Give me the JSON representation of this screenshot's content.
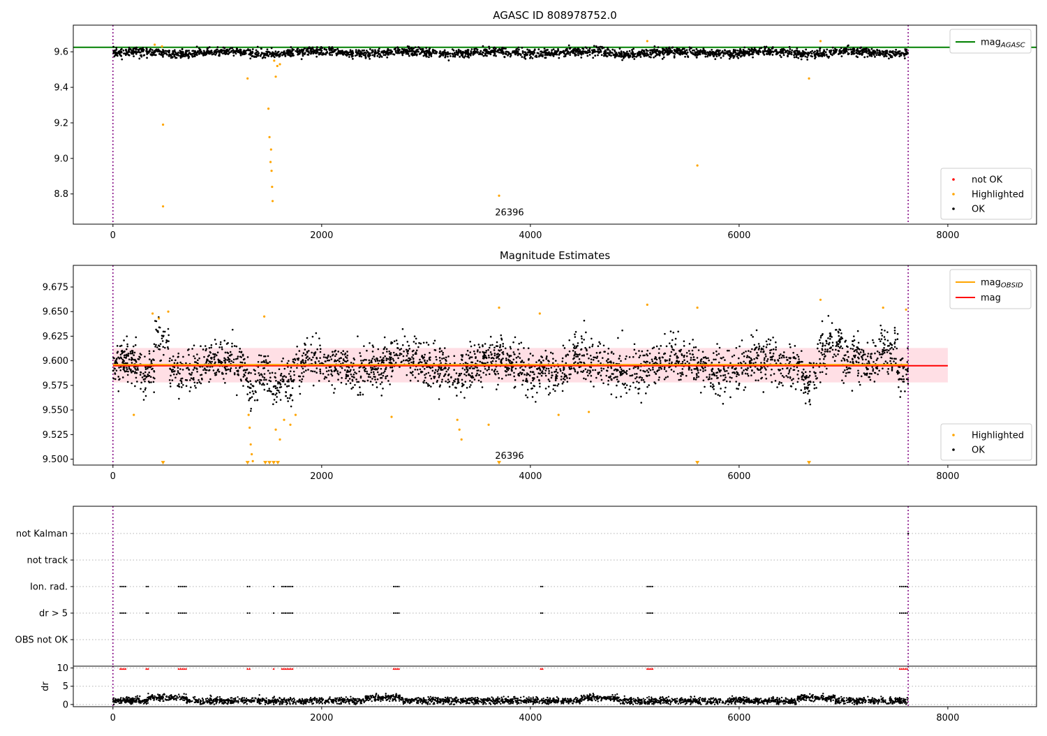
{
  "figure": {
    "page_background": "#ffffff"
  },
  "colors": {
    "ok": "#000000",
    "highlighted": "#ffa500",
    "not_ok": "#ff0000",
    "agasc_line": "#008000",
    "obsid_line": "#ffa500",
    "mag_line": "#ff0000",
    "band": "#ffc0cb",
    "obs_boundary": "#800080",
    "dr_flag": "#ff0000"
  },
  "chart_data": [
    {
      "id": "agasc",
      "type": "scatter",
      "title": "AGASC ID 808978752.0",
      "xlim": [
        -380,
        8850
      ],
      "ylim": [
        8.63,
        9.75
      ],
      "xticks": [
        0,
        2000,
        4000,
        6000,
        8000
      ],
      "xtick_labels": [
        "0",
        "2000",
        "4000",
        "6000",
        "8000"
      ],
      "yticks": [
        8.8,
        9.0,
        9.2,
        9.4,
        9.6
      ],
      "ytick_labels": [
        "8.8",
        "9.0",
        "9.2",
        "9.4",
        "9.6"
      ],
      "hlines": [
        {
          "name": "mag_AGASC",
          "y": 9.625,
          "x_range": [
            -380,
            8850
          ],
          "color": "#008000"
        }
      ],
      "vlines": [
        0,
        7620
      ],
      "annotation": {
        "text": "26396",
        "x": 3800,
        "y": 8.66
      },
      "legend_lines": {
        "position": "top-right",
        "entries": [
          {
            "label": "mag",
            "sub": "AGASC",
            "color": "#008000"
          }
        ]
      },
      "legend_markers": {
        "position": "bottom-right",
        "entries": [
          {
            "label": "not OK",
            "color": "#ff0000"
          },
          {
            "label": "Highlighted",
            "color": "#ffa500"
          },
          {
            "label": "OK",
            "color": "#000000"
          }
        ]
      },
      "series": [
        {
          "name": "OK",
          "color": "#000000",
          "model": {
            "x_range": [
              0,
              7620
            ],
            "base": 9.595,
            "noise": 0.012,
            "count": 2600
          }
        },
        {
          "name": "Highlighted",
          "color": "#ffa500",
          "points": [
            [
              480,
              9.19
            ],
            [
              480,
              8.73
            ],
            [
              1290,
              9.45
            ],
            [
              1490,
              9.28
            ],
            [
              1500,
              9.12
            ],
            [
              1510,
              8.98
            ],
            [
              1515,
              9.05
            ],
            [
              1520,
              8.93
            ],
            [
              1525,
              8.84
            ],
            [
              1530,
              8.76
            ],
            [
              1545,
              9.55
            ],
            [
              1560,
              9.46
            ],
            [
              1575,
              9.52
            ],
            [
              1600,
              9.53
            ],
            [
              3700,
              8.79
            ],
            [
              5600,
              8.96
            ],
            [
              6670,
              9.45
            ],
            [
              400,
              9.64
            ],
            [
              470,
              9.63
            ],
            [
              5120,
              9.66
            ],
            [
              6780,
              9.66
            ]
          ]
        }
      ]
    },
    {
      "id": "magnitude",
      "type": "scatter",
      "title": "Magnitude Estimates",
      "xlim": [
        -380,
        8850
      ],
      "ylim": [
        9.494,
        9.697
      ],
      "xticks": [
        0,
        2000,
        4000,
        6000,
        8000
      ],
      "xtick_labels": [
        "0",
        "2000",
        "4000",
        "6000",
        "8000"
      ],
      "yticks": [
        9.5,
        9.525,
        9.55,
        9.575,
        9.6,
        9.625,
        9.65,
        9.675
      ],
      "ytick_labels": [
        "9.500",
        "9.525",
        "9.550",
        "9.575",
        "9.600",
        "9.625",
        "9.650",
        "9.675"
      ],
      "band": {
        "y_range": [
          9.578,
          9.613
        ],
        "x_range": [
          0,
          8000
        ],
        "color": "#ffc0cb"
      },
      "hlines": [
        {
          "name": "mag",
          "y": 9.595,
          "x_range": [
            0,
            8000
          ],
          "color": "#ff0000"
        },
        {
          "name": "mag_OBSID",
          "y": 9.596,
          "x_range": [
            0,
            7620
          ],
          "color": "#ffa500"
        }
      ],
      "vlines": [
        0,
        7620
      ],
      "annotation": {
        "text": "26396",
        "x": 3800,
        "y": 9.497
      },
      "legend_lines": {
        "position": "top-right",
        "entries": [
          {
            "label": "mag",
            "sub": "OBSID",
            "color": "#ffa500"
          },
          {
            "label": "mag",
            "sub": "",
            "color": "#ff0000"
          }
        ]
      },
      "legend_markers": {
        "position": "bottom-right",
        "entries": [
          {
            "label": "Highlighted",
            "color": "#ffa500"
          },
          {
            "label": "OK",
            "color": "#000000"
          }
        ]
      },
      "series": [
        {
          "name": "OK",
          "color": "#000000",
          "model": {
            "x_range": [
              0,
              7620
            ],
            "base": 9.595,
            "noise": 0.011,
            "count": 3000
          }
        },
        {
          "name": "Highlighted",
          "color": "#ffa500",
          "points": [
            [
              380,
              9.648
            ],
            [
              440,
              9.643
            ],
            [
              530,
              9.65
            ],
            [
              1300,
              9.545
            ],
            [
              1310,
              9.532
            ],
            [
              1320,
              9.515
            ],
            [
              1330,
              9.505
            ],
            [
              1340,
              9.498
            ],
            [
              1450,
              9.645
            ],
            [
              1560,
              9.53
            ],
            [
              1600,
              9.52
            ],
            [
              1640,
              9.54
            ],
            [
              1700,
              9.535
            ],
            [
              1750,
              9.545
            ],
            [
              3300,
              9.54
            ],
            [
              3320,
              9.53
            ],
            [
              3340,
              9.52
            ],
            [
              3600,
              9.535
            ],
            [
              3700,
              9.654
            ],
            [
              4090,
              9.648
            ],
            [
              5120,
              9.657
            ],
            [
              5600,
              9.654
            ],
            [
              6780,
              9.662
            ],
            [
              7380,
              9.654
            ],
            [
              7600,
              9.652
            ],
            [
              200,
              9.545
            ],
            [
              4270,
              9.545
            ],
            [
              4560,
              9.548
            ],
            [
              2670,
              9.543
            ]
          ]
        },
        {
          "name": "below-range",
          "color": "#ffa500",
          "points": [
            [
              480,
              9.496
            ],
            [
              1290,
              9.496
            ],
            [
              1460,
              9.496
            ],
            [
              1500,
              9.496
            ],
            [
              1540,
              9.496
            ],
            [
              1580,
              9.496
            ],
            [
              3700,
              9.496
            ],
            [
              5600,
              9.496
            ],
            [
              6670,
              9.496
            ]
          ]
        }
      ]
    },
    {
      "id": "flags",
      "type": "scatter",
      "title": "",
      "xlim": [
        -380,
        8850
      ],
      "categories": [
        "OBS not OK",
        "dr > 5",
        "Ion. rad.",
        "not track",
        "not Kalman"
      ],
      "vlines": [
        0,
        7620
      ],
      "groups": [
        {
          "x": [
            70,
            130
          ]
        },
        {
          "x": [
            320,
            350
          ]
        },
        {
          "x": [
            630,
            700
          ]
        },
        {
          "x": [
            1290,
            1310
          ]
        },
        {
          "x": [
            1540,
            1550
          ]
        },
        {
          "x": [
            1620,
            1720
          ]
        },
        {
          "x": [
            2690,
            2750
          ]
        },
        {
          "x": [
            4100,
            4130
          ]
        },
        {
          "x": [
            5120,
            5180
          ]
        },
        {
          "x": [
            7540,
            7610
          ]
        }
      ],
      "series": [
        {
          "name": "dr > 5",
          "color": "#000000"
        },
        {
          "name": "Ion. rad.",
          "color": "#000000"
        },
        {
          "name": "not Kalman",
          "color": "#000000",
          "points": [
            [
              7620,
              5
            ]
          ]
        }
      ]
    },
    {
      "id": "dr",
      "type": "scatter",
      "title": "",
      "ylabel": "dr",
      "xlim": [
        -380,
        8850
      ],
      "ylim": [
        -0.6,
        10.5
      ],
      "xticks": [
        0,
        2000,
        4000,
        6000,
        8000
      ],
      "xtick_labels": [
        "0",
        "2000",
        "4000",
        "6000",
        "8000"
      ],
      "yticks": [
        0,
        5,
        10
      ],
      "ytick_labels": [
        "0",
        "5",
        "10"
      ],
      "vlines": [
        0,
        7620
      ],
      "series": [
        {
          "name": "dr",
          "color": "#000000",
          "model": {
            "x_range": [
              0,
              7620
            ],
            "base": 1.0,
            "noise": 0.45,
            "count": 3000
          }
        },
        {
          "name": "dr > 5 flags",
          "color": "#ff0000",
          "y": 9.8
        }
      ]
    }
  ]
}
